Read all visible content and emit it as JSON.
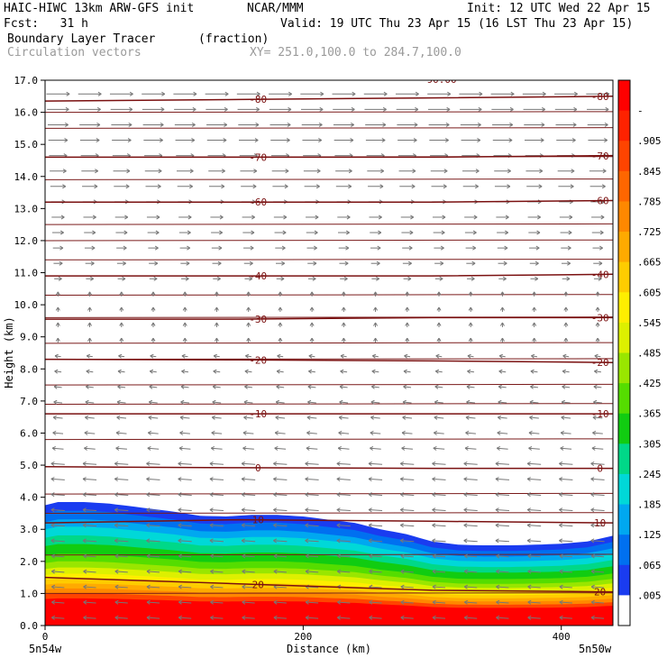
{
  "header": {
    "model": "HAIC-HIWC 13km ARW-GFS init",
    "org": "NCAR/MMM",
    "init": "Init: 12 UTC Wed 22 Apr 15",
    "fcst": "Fcst:   31 h",
    "valid": "Valid: 19 UTC Thu 23 Apr 15 (16 LST Thu 23 Apr 15)",
    "field": "Boundary Layer Tracer",
    "units": "(fraction)",
    "vectors": "Circulation vectors",
    "xy": "XY= 251.0,100.0 to 284.7,100.0"
  },
  "chart_data": {
    "type": "heatmap",
    "title": "Boundary Layer Tracer",
    "units": "(fraction)",
    "xlabel": "Distance (km)",
    "ylabel": "Height (km)",
    "xlim": [
      0,
      440
    ],
    "ylim": [
      0,
      17
    ],
    "x_ticks": [
      "0",
      "200",
      "400"
    ],
    "x_tick_values": [
      0,
      200,
      400
    ],
    "y_ticks": [
      "0.0",
      "1.0",
      "2.0",
      "3.0",
      "4.0",
      "5.0",
      "6.0",
      "7.0",
      "8.0",
      "9.0",
      "10.0",
      "11.0",
      "12.0",
      "13.0",
      "14.0",
      "15.0",
      "16.0",
      "17.0"
    ],
    "endpoint_left": "5n54w",
    "endpoint_right": "5n50w",
    "colorbar": {
      "labels": [
        "-",
        ".905",
        ".845",
        ".785",
        ".725",
        ".665",
        ".605",
        ".545",
        ".485",
        ".425",
        ".365",
        ".305",
        ".245",
        ".185",
        ".125",
        ".065",
        ".005"
      ],
      "colors": [
        "#ff0000",
        "#ff2200",
        "#ff4400",
        "#ff6600",
        "#ff8800",
        "#ffaa00",
        "#ffcc00",
        "#ffee00",
        "#ddf000",
        "#99e600",
        "#55dd00",
        "#11cc11",
        "#00d888",
        "#00d8d8",
        "#00a8f0",
        "#0070f0",
        "#1a3cf0",
        "#ffffff"
      ]
    },
    "tracer_top_km": [
      [
        0,
        3.75
      ],
      [
        10,
        3.85
      ],
      [
        30,
        3.85
      ],
      [
        50,
        3.8
      ],
      [
        70,
        3.7
      ],
      [
        100,
        3.55
      ],
      [
        120,
        3.42
      ],
      [
        140,
        3.4
      ],
      [
        160,
        3.45
      ],
      [
        180,
        3.45
      ],
      [
        200,
        3.4
      ],
      [
        220,
        3.3
      ],
      [
        240,
        3.2
      ],
      [
        260,
        3.0
      ],
      [
        280,
        2.85
      ],
      [
        300,
        2.62
      ],
      [
        320,
        2.52
      ],
      [
        340,
        2.5
      ],
      [
        360,
        2.5
      ],
      [
        380,
        2.52
      ],
      [
        400,
        2.55
      ],
      [
        420,
        2.62
      ],
      [
        440,
        2.8
      ]
    ],
    "temperature_contours_c": [
      {
        "value": 20,
        "label": "20",
        "points": [
          [
            0,
            1.5
          ],
          [
            150,
            1.3
          ],
          [
            300,
            1.1
          ],
          [
            440,
            1.05
          ]
        ]
      },
      {
        "value": 10,
        "label": "10",
        "points": [
          [
            0,
            3.2
          ],
          [
            150,
            3.3
          ],
          [
            300,
            3.25
          ],
          [
            440,
            3.2
          ]
        ]
      },
      {
        "value": 0,
        "label": "0",
        "points": [
          [
            0,
            4.95
          ],
          [
            150,
            4.92
          ],
          [
            300,
            4.9
          ],
          [
            440,
            4.9
          ]
        ]
      },
      {
        "value": -10,
        "label": "-10",
        "points": [
          [
            0,
            6.6
          ],
          [
            150,
            6.6
          ],
          [
            300,
            6.6
          ],
          [
            440,
            6.6
          ]
        ]
      },
      {
        "value": -20,
        "label": "-20",
        "points": [
          [
            0,
            8.3
          ],
          [
            150,
            8.28
          ],
          [
            300,
            8.25
          ],
          [
            440,
            8.2
          ]
        ]
      },
      {
        "value": -30,
        "label": "-30",
        "points": [
          [
            0,
            9.55
          ],
          [
            150,
            9.55
          ],
          [
            300,
            9.6
          ],
          [
            440,
            9.6
          ]
        ]
      },
      {
        "value": -40,
        "label": "-40",
        "points": [
          [
            0,
            10.9
          ],
          [
            150,
            10.9
          ],
          [
            300,
            10.9
          ],
          [
            440,
            10.95
          ]
        ]
      },
      {
        "value": -60,
        "label": "-60",
        "points": [
          [
            0,
            13.2
          ],
          [
            150,
            13.2
          ],
          [
            300,
            13.2
          ],
          [
            440,
            13.25
          ]
        ]
      },
      {
        "value": -70,
        "label": "-70",
        "points": [
          [
            0,
            14.6
          ],
          [
            150,
            14.6
          ],
          [
            300,
            14.6
          ],
          [
            440,
            14.65
          ]
        ]
      },
      {
        "value": -80,
        "label": "-80",
        "points": [
          [
            0,
            16.35
          ],
          [
            150,
            16.4
          ],
          [
            300,
            16.45
          ],
          [
            440,
            16.5
          ]
        ]
      }
    ],
    "extra_contour_label": "-90.00",
    "isentrope_levels_km": [
      1.0,
      2.2,
      3.5,
      4.1,
      5.8,
      6.9,
      7.5,
      8.3,
      8.8,
      9.6,
      10.3,
      11.4,
      12.0,
      12.5,
      13.9,
      14.6,
      15.5,
      16.0
    ]
  }
}
